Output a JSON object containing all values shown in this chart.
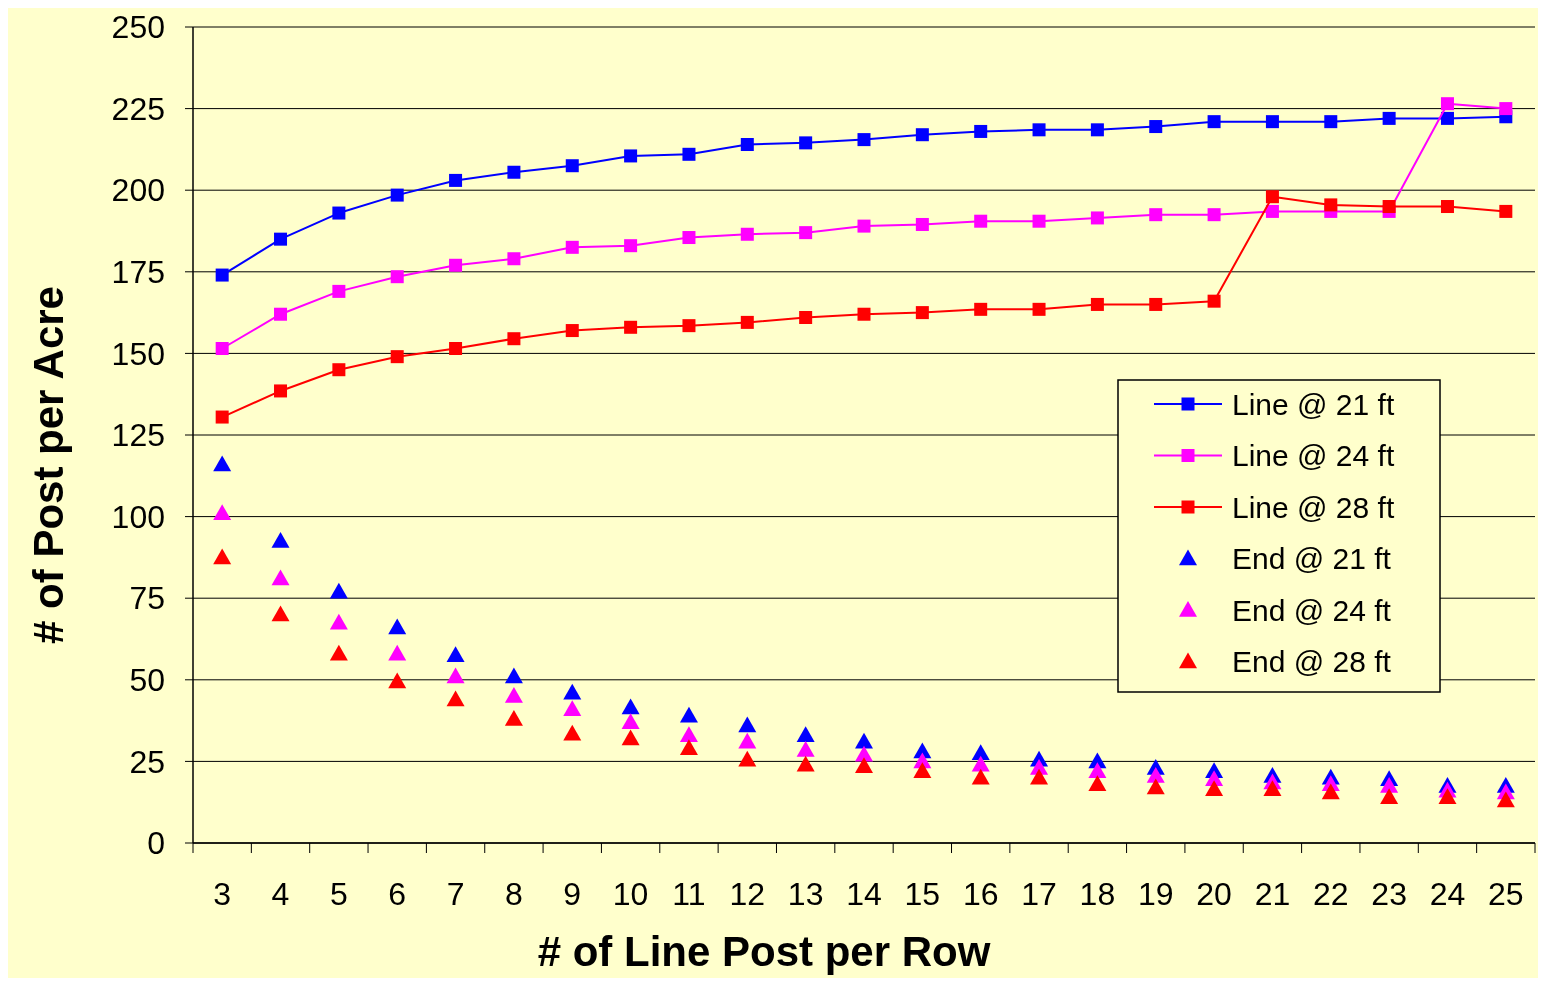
{
  "chart_data": {
    "type": "line",
    "xlabel": "# of Line Post per Row",
    "ylabel": "# of Post per Acre",
    "categories": [
      "3",
      "4",
      "5",
      "6",
      "7",
      "8",
      "9",
      "10",
      "11",
      "12",
      "13",
      "14",
      "15",
      "16",
      "17",
      "18",
      "19",
      "20",
      "21",
      "22",
      "23",
      "24",
      "25"
    ],
    "ylim": [
      0,
      250
    ],
    "yticks": [
      0,
      25,
      50,
      75,
      100,
      125,
      150,
      175,
      200,
      225,
      250
    ],
    "grid": "y",
    "legend": "right",
    "series": [
      {
        "name": "Line @ 21 ft",
        "marker": "square",
        "color": "#0000ff",
        "values": [
          174,
          185,
          193,
          198.5,
          203,
          205.5,
          207.5,
          210.5,
          211,
          214,
          214.5,
          215.5,
          217,
          218,
          218.5,
          218.5,
          219.5,
          221,
          221,
          221,
          222,
          222,
          222.5
        ]
      },
      {
        "name": "Line @ 24 ft",
        "marker": "square",
        "color": "#ff00ff",
        "values": [
          151.5,
          162,
          169,
          173.5,
          177,
          179,
          182.5,
          183,
          185.5,
          186.5,
          187,
          189,
          189.5,
          190.5,
          190.5,
          191.5,
          192.5,
          192.5,
          193.5,
          193.5,
          193.5,
          226.5,
          225
        ]
      },
      {
        "name": "Line @ 28 ft",
        "marker": "square",
        "color": "#ff0000",
        "values": [
          130.5,
          138.5,
          145,
          149,
          151.5,
          154.5,
          157,
          158,
          158.5,
          159.5,
          161,
          162,
          162.5,
          163.5,
          163.5,
          165,
          165,
          166,
          198,
          195.5,
          195,
          195,
          193.5
        ]
      },
      {
        "name": "End @ 21 ft",
        "type": "scatter",
        "marker": "triangle",
        "color": "#0000ff",
        "values": [
          116,
          92.5,
          77,
          66,
          57.5,
          51,
          46,
          41.5,
          39,
          36,
          33,
          31,
          28,
          27.5,
          25.5,
          25,
          23,
          22,
          20.5,
          20,
          19.5,
          17.5,
          17.5
        ]
      },
      {
        "name": "End @ 24 ft",
        "type": "scatter",
        "marker": "triangle",
        "color": "#ff00ff",
        "values": [
          101,
          81,
          67.5,
          58,
          51,
          45,
          41,
          37,
          33,
          31,
          28.5,
          27,
          25,
          24,
          23,
          22,
          20.5,
          19.5,
          18.5,
          18,
          17.5,
          16,
          15.5
        ]
      },
      {
        "name": "End @ 28 ft",
        "type": "scatter",
        "marker": "triangle",
        "color": "#ff0000",
        "values": [
          87.5,
          70,
          58,
          49.5,
          44,
          38,
          33.5,
          32,
          29,
          25.5,
          24,
          23.5,
          22,
          20,
          20,
          18,
          17,
          16.5,
          16.5,
          15.5,
          14,
          14,
          13
        ]
      }
    ]
  }
}
